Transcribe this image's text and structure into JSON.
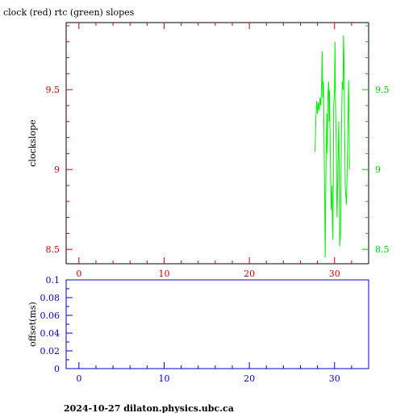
{
  "chart_data": [
    {
      "type": "line",
      "title": "clock (red) rtc (green) slopes",
      "xlabel": "",
      "ylabel": "clockslope",
      "xlim": [
        -1.5,
        34
      ],
      "ylim": [
        8.41,
        9.92
      ],
      "x_ticks": [
        0,
        10,
        20,
        30
      ],
      "y_ticks": [
        8.5,
        9,
        9.5
      ],
      "y_tick_labels": [
        "8.5",
        "9",
        "9.5"
      ],
      "right_y_tick_labels": [
        "8.5",
        "9",
        "9.5"
      ],
      "axis_colors": {
        "frame": "#000000",
        "left": "#cc0000",
        "right": "#00cc00",
        "bottom": "#cc0000"
      },
      "grid": false,
      "series": [
        {
          "color": "#00ee00",
          "points": [
            [
              27.7,
              9.11
            ],
            [
              27.8,
              9.3
            ],
            [
              27.9,
              9.43
            ],
            [
              28.0,
              9.35
            ],
            [
              28.1,
              9.42
            ],
            [
              28.2,
              9.37
            ],
            [
              28.3,
              9.45
            ],
            [
              28.4,
              9.4
            ],
            [
              28.5,
              9.58
            ],
            [
              28.55,
              9.74
            ],
            [
              28.6,
              9.45
            ],
            [
              28.7,
              9.55
            ],
            [
              28.75,
              9.3
            ],
            [
              28.8,
              9.0
            ],
            [
              28.85,
              8.8
            ],
            [
              28.9,
              8.45
            ],
            [
              29.0,
              9.05
            ],
            [
              29.1,
              9.35
            ],
            [
              29.15,
              9.1
            ],
            [
              29.2,
              9.45
            ],
            [
              29.3,
              9.55
            ],
            [
              29.35,
              9.3
            ],
            [
              29.4,
              9.5
            ],
            [
              29.5,
              9.1
            ],
            [
              29.6,
              8.75
            ],
            [
              29.7,
              8.9
            ],
            [
              29.75,
              8.65
            ],
            [
              29.8,
              8.56
            ],
            [
              29.85,
              8.9
            ],
            [
              29.9,
              9.4
            ],
            [
              30.0,
              9.5
            ],
            [
              30.05,
              9.8
            ],
            [
              30.1,
              9.45
            ],
            [
              30.2,
              9.15
            ],
            [
              30.25,
              8.85
            ],
            [
              30.3,
              8.7
            ],
            [
              30.4,
              9.05
            ],
            [
              30.5,
              9.3
            ],
            [
              30.55,
              8.9
            ],
            [
              30.6,
              8.52
            ],
            [
              30.7,
              8.6
            ],
            [
              30.8,
              9.2
            ],
            [
              30.9,
              9.55
            ],
            [
              31.0,
              9.5
            ],
            [
              31.05,
              9.84
            ],
            [
              31.1,
              9.72
            ],
            [
              31.2,
              9.2
            ],
            [
              31.25,
              8.9
            ],
            [
              31.3,
              8.85
            ],
            [
              31.4,
              8.78
            ],
            [
              31.5,
              9.05
            ],
            [
              31.6,
              9.35
            ],
            [
              31.65,
              9.56
            ],
            [
              31.7,
              9.4
            ],
            [
              31.75,
              9.0
            ]
          ]
        }
      ]
    },
    {
      "type": "line",
      "title": "",
      "xlabel": "",
      "ylabel": "offset(ms)",
      "xlim": [
        -1.5,
        34
      ],
      "ylim": [
        0,
        0.1
      ],
      "x_ticks": [
        0,
        10,
        20,
        30
      ],
      "y_ticks": [
        0,
        0.02,
        0.04,
        0.06,
        0.08,
        0.1
      ],
      "y_tick_labels": [
        "0",
        "0.02",
        "0.04",
        "0.06",
        "0.08",
        "0.1"
      ],
      "axis_colors": {
        "frame": "#0000cc",
        "left": "#0000cc",
        "bottom": "#0000cc"
      },
      "grid": false,
      "series": []
    }
  ],
  "footer": "2024-10-27  dilaton.physics.ubc.ca"
}
